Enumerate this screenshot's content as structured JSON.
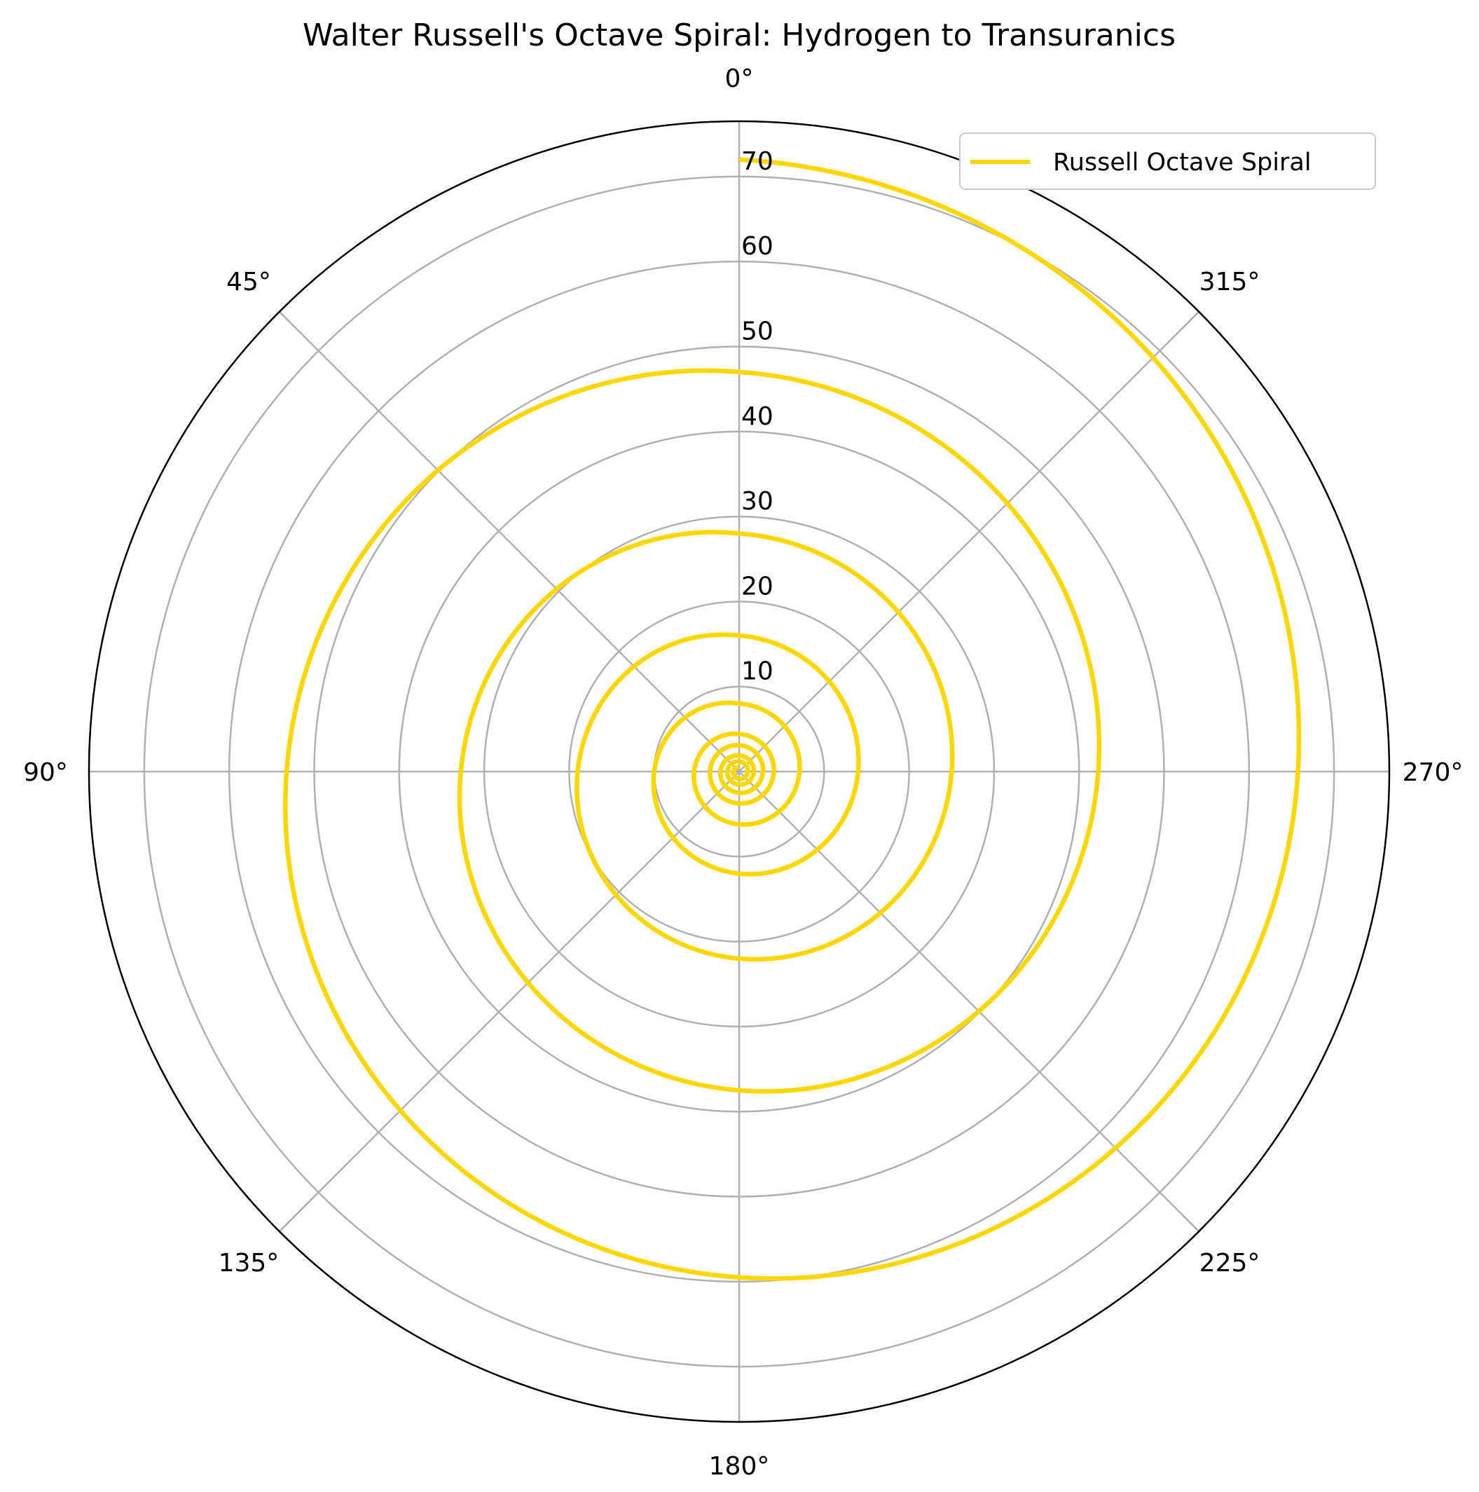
{
  "chart_data": {
    "type": "line",
    "projection": "polar",
    "title": "Walter Russell's Octave Spiral: Hydrogen to Transuranics",
    "theta_zero_location": "top",
    "theta_direction": "counterclockwise",
    "theta_ticks": [
      "0°",
      "45°",
      "90°",
      "135°",
      "180°",
      "225°",
      "270°",
      "315°"
    ],
    "theta_tick_values": [
      0,
      45,
      90,
      135,
      180,
      225,
      270,
      315
    ],
    "r_ticks": [
      "10",
      "20",
      "30",
      "40",
      "50",
      "60",
      "70"
    ],
    "r_tick_values": [
      10,
      20,
      30,
      40,
      50,
      60,
      70
    ],
    "rlim": [
      0,
      76.5
    ],
    "grid": true,
    "legend_placement": "top-right",
    "series": [
      {
        "name": "Russell Octave Spiral",
        "color": "#FFD700",
        "spiral_turns": 9,
        "r_at_turn_start": [
          0.5,
          1.2,
          1.9,
          3.1,
          4.4,
          8.0,
          16.0,
          28.0,
          47.0,
          72.0
        ],
        "description": "one full 360° revolution between successive r_at_turn_start values, radius interpolated within each turn"
      }
    ],
    "annotations_color": "#FFFFFF"
  }
}
